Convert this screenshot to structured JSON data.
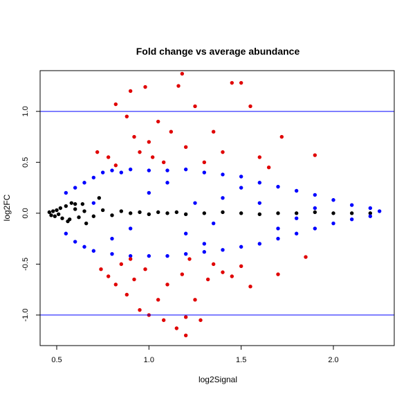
{
  "colors": {
    "background": "#ffffff",
    "axis": "#000000",
    "significant_points": "#e00000",
    "other_points": "#0000ff",
    "near_zero_points": "#000000",
    "threshold_lines": "#0000ff"
  },
  "chart_data": {
    "type": "scatter",
    "title": "Fold change vs average abundance",
    "xlabel": "log2Signal",
    "ylabel": "log2FC",
    "xlim": [
      0.41,
      2.33
    ],
    "ylim": [
      -1.3,
      1.4
    ],
    "x_ticks": [
      0.5,
      1.0,
      1.5,
      2.0
    ],
    "x_tick_labels": [
      "0.5",
      "1.0",
      "1.5",
      "2.0"
    ],
    "y_ticks": [
      -1.0,
      -0.5,
      0.0,
      0.5,
      1.0
    ],
    "y_tick_labels": [
      "-1.0",
      "-0.5",
      "0.0",
      "0.5",
      "1.0"
    ],
    "hlines": [
      1.0,
      -1.0
    ],
    "grid": false,
    "legend": "none",
    "point_groups": [
      {
        "color": "#000000",
        "description": "near zero",
        "points": [
          [
            0.46,
            0.01
          ],
          [
            0.47,
            -0.02
          ],
          [
            0.48,
            0.02
          ],
          [
            0.49,
            -0.03
          ],
          [
            0.5,
            0.03
          ],
          [
            0.51,
            -0.01
          ],
          [
            0.52,
            0.05
          ],
          [
            0.53,
            -0.05
          ],
          [
            0.55,
            0.07
          ],
          [
            0.57,
            -0.06
          ],
          [
            0.6,
            0.04
          ],
          [
            0.62,
            -0.04
          ],
          [
            0.65,
            0.02
          ],
          [
            0.7,
            -0.03
          ],
          [
            0.75,
            0.03
          ],
          [
            0.8,
            -0.02
          ],
          [
            0.85,
            0.02
          ],
          [
            0.9,
            0.0
          ],
          [
            0.95,
            0.01
          ],
          [
            1.0,
            -0.01
          ],
          [
            1.05,
            0.01
          ],
          [
            1.1,
            0.0
          ],
          [
            1.15,
            0.01
          ],
          [
            1.2,
            -0.01
          ],
          [
            1.3,
            0.0
          ],
          [
            1.4,
            0.01
          ],
          [
            1.5,
            0.0
          ],
          [
            1.6,
            -0.01
          ],
          [
            1.7,
            0.0
          ],
          [
            1.8,
            0.0
          ],
          [
            1.9,
            0.01
          ],
          [
            2.0,
            0.0
          ],
          [
            2.1,
            0.0
          ],
          [
            2.2,
            0.0
          ],
          [
            0.58,
            0.1
          ],
          [
            0.6,
            0.09
          ],
          [
            0.56,
            -0.08
          ],
          [
            0.64,
            0.09
          ],
          [
            0.73,
            0.15
          ],
          [
            0.66,
            -0.1
          ]
        ]
      },
      {
        "color": "#0000ff",
        "description": "within threshold",
        "points": [
          [
            0.55,
            0.2
          ],
          [
            0.6,
            0.25
          ],
          [
            0.65,
            0.3
          ],
          [
            0.7,
            0.35
          ],
          [
            0.75,
            0.4
          ],
          [
            0.8,
            0.42
          ],
          [
            0.85,
            0.4
          ],
          [
            0.9,
            0.43
          ],
          [
            1.0,
            0.42
          ],
          [
            1.1,
            0.42
          ],
          [
            1.2,
            0.43
          ],
          [
            1.3,
            0.4
          ],
          [
            1.4,
            0.38
          ],
          [
            1.5,
            0.36
          ],
          [
            1.6,
            0.3
          ],
          [
            1.7,
            0.26
          ],
          [
            1.8,
            0.22
          ],
          [
            1.9,
            0.18
          ],
          [
            2.0,
            0.13
          ],
          [
            2.1,
            0.08
          ],
          [
            2.2,
            0.05
          ],
          [
            2.25,
            0.02
          ],
          [
            0.55,
            -0.2
          ],
          [
            0.6,
            -0.28
          ],
          [
            0.65,
            -0.33
          ],
          [
            0.7,
            -0.37
          ],
          [
            0.8,
            -0.4
          ],
          [
            0.9,
            -0.42
          ],
          [
            1.0,
            -0.42
          ],
          [
            1.1,
            -0.42
          ],
          [
            1.2,
            -0.4
          ],
          [
            1.3,
            -0.38
          ],
          [
            1.4,
            -0.36
          ],
          [
            1.5,
            -0.33
          ],
          [
            1.6,
            -0.3
          ],
          [
            1.7,
            -0.25
          ],
          [
            1.8,
            -0.2
          ],
          [
            1.9,
            -0.15
          ],
          [
            2.0,
            -0.1
          ],
          [
            2.1,
            -0.06
          ],
          [
            2.2,
            -0.03
          ],
          [
            1.0,
            0.2
          ],
          [
            1.2,
            -0.2
          ],
          [
            1.4,
            0.15
          ],
          [
            0.9,
            -0.15
          ],
          [
            1.6,
            0.1
          ],
          [
            1.8,
            -0.05
          ],
          [
            0.7,
            0.1
          ],
          [
            1.1,
            0.3
          ],
          [
            1.3,
            -0.3
          ],
          [
            1.5,
            0.25
          ],
          [
            1.7,
            -0.15
          ],
          [
            1.9,
            0.05
          ],
          [
            0.8,
            -0.25
          ],
          [
            1.25,
            0.1
          ],
          [
            1.35,
            -0.1
          ]
        ]
      },
      {
        "color": "#e00000",
        "description": "significant",
        "points": [
          [
            0.72,
            0.6
          ],
          [
            0.78,
            0.55
          ],
          [
            0.82,
            0.47
          ],
          [
            0.88,
            0.95
          ],
          [
            0.9,
            1.2
          ],
          [
            0.92,
            0.75
          ],
          [
            0.95,
            0.6
          ],
          [
            0.98,
            1.24
          ],
          [
            1.02,
            0.55
          ],
          [
            1.05,
            0.9
          ],
          [
            1.08,
            0.5
          ],
          [
            1.12,
            0.8
          ],
          [
            1.16,
            1.25
          ],
          [
            1.18,
            1.37
          ],
          [
            1.2,
            0.65
          ],
          [
            1.25,
            1.05
          ],
          [
            1.3,
            0.5
          ],
          [
            1.35,
            0.8
          ],
          [
            1.4,
            0.6
          ],
          [
            1.45,
            1.28
          ],
          [
            1.5,
            1.28
          ],
          [
            1.55,
            1.05
          ],
          [
            1.6,
            0.55
          ],
          [
            1.65,
            0.45
          ],
          [
            1.72,
            0.75
          ],
          [
            1.9,
            0.57
          ],
          [
            0.82,
            1.07
          ],
          [
            1.0,
            0.7
          ],
          [
            0.74,
            -0.55
          ],
          [
            0.78,
            -0.62
          ],
          [
            0.82,
            -0.7
          ],
          [
            0.85,
            -0.5
          ],
          [
            0.88,
            -0.8
          ],
          [
            0.92,
            -0.65
          ],
          [
            0.95,
            -0.95
          ],
          [
            0.98,
            -0.55
          ],
          [
            1.0,
            -1.0
          ],
          [
            1.05,
            -0.85
          ],
          [
            1.08,
            -1.05
          ],
          [
            1.1,
            -0.7
          ],
          [
            1.15,
            -1.13
          ],
          [
            1.18,
            -0.6
          ],
          [
            1.2,
            -1.02
          ],
          [
            1.22,
            -0.45
          ],
          [
            1.25,
            -0.85
          ],
          [
            1.28,
            -1.05
          ],
          [
            1.32,
            -0.65
          ],
          [
            1.35,
            -0.5
          ],
          [
            1.4,
            -0.58
          ],
          [
            1.45,
            -0.62
          ],
          [
            1.5,
            -0.52
          ],
          [
            1.55,
            -0.72
          ],
          [
            1.7,
            -0.6
          ],
          [
            1.85,
            -0.43
          ],
          [
            1.2,
            -1.2
          ],
          [
            0.9,
            -0.45
          ]
        ]
      }
    ]
  }
}
